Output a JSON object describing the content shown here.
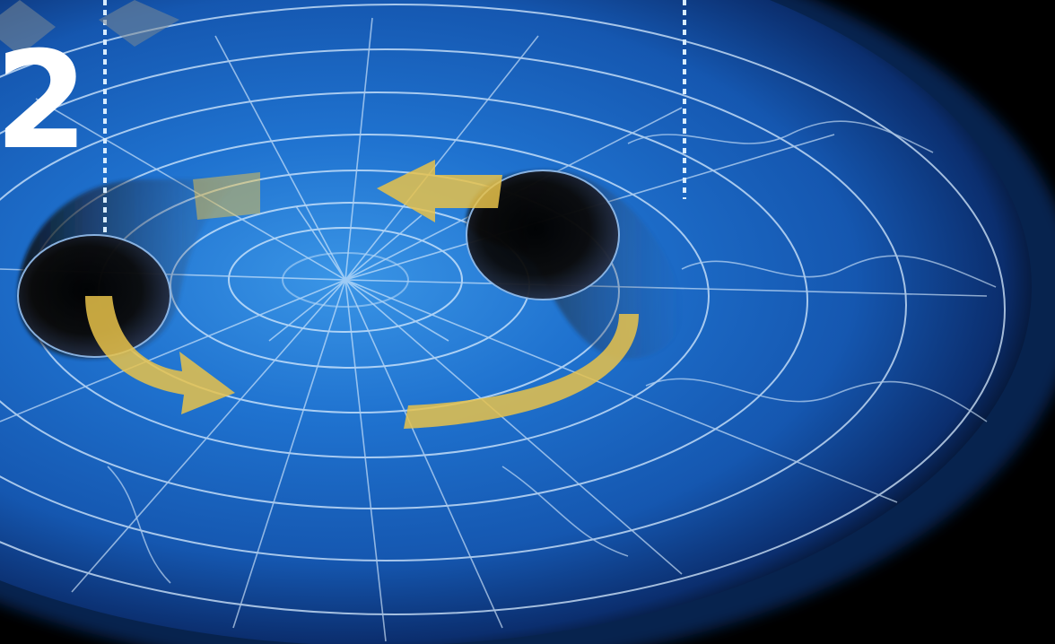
{
  "diagram": {
    "step_number": "2",
    "colors": {
      "background": "#000000",
      "disk_bright": "#2f86d8",
      "disk_mid": "#1a5eb8",
      "disk_dark": "#0b2e6e",
      "grid_line": "#d8ecff",
      "arrow": "#e8c24a",
      "marker_line": "#d8ecff",
      "black_hole": "#050505"
    },
    "elements": [
      "spacetime-grid",
      "black-hole-left",
      "black-hole-right",
      "orbit-arrows",
      "marker-lines",
      "corner-diamonds"
    ]
  }
}
